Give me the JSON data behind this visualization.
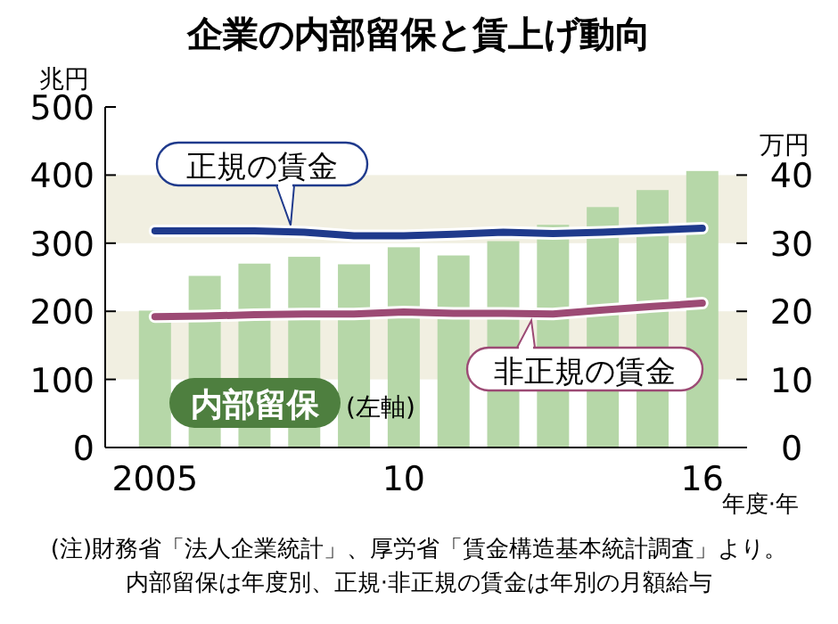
{
  "chart_data": {
    "type": "bar",
    "title": "企業の内部留保と賃上げ動向",
    "ylabel": "兆円",
    "y2label": "万円",
    "xlabel": "年度·年",
    "categories": [
      "2005",
      null,
      null,
      null,
      null,
      "10",
      null,
      null,
      null,
      null,
      null,
      "16"
    ],
    "series": [
      {
        "name": "内部留保",
        "color": "#b6d7a8",
        "values": [
          201,
          252,
          270,
          280,
          269,
          294,
          282,
          303,
          327,
          353,
          378,
          406
        ]
      },
      {
        "name": "正規の賃金",
        "type": "line",
        "axis": "y2",
        "color": "#1f3a8c",
        "values": [
          31.8,
          31.8,
          31.8,
          31.6,
          31.1,
          31.1,
          31.3,
          31.6,
          31.4,
          31.6,
          31.9,
          32.2
        ]
      },
      {
        "name": "非正規の賃金",
        "type": "line",
        "axis": "y2",
        "color": "#9c4a74",
        "values": [
          19.2,
          19.3,
          19.5,
          19.6,
          19.6,
          19.9,
          19.7,
          19.7,
          19.6,
          20.2,
          20.7,
          21.2
        ]
      }
    ],
    "ylim": [
      0,
      500
    ],
    "yticks": [
      0,
      100,
      200,
      300,
      400,
      500
    ],
    "y2lim": [
      0,
      50
    ],
    "y2ticks": [
      0,
      10,
      20,
      30,
      40
    ],
    "bands": [
      {
        "axis": "y",
        "from": 100,
        "to": 200,
        "color": "#f1efe1"
      },
      {
        "axis": "y",
        "from": 300,
        "to": 400,
        "color": "#f1efe1"
      }
    ],
    "legend": false,
    "annotations": [
      "(左軸)",
      "(注)財務省「法人企業統計」、厚労省「賃金構造基本統計調査」より。",
      "内部留保は年度別、正規·非正規の賃金は年別の月額給与"
    ]
  }
}
